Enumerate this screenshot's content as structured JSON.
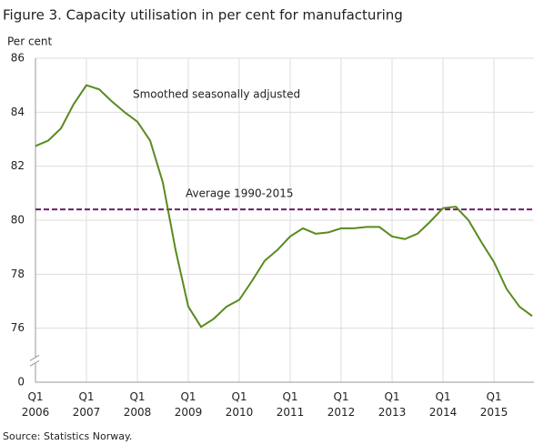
{
  "chart_data": {
    "type": "line",
    "title": "Figure 3. Capacity utilisation in per cent for manufacturing",
    "y_label": "Per cent",
    "source": "Source: Statistics Norway.",
    "categories": [
      "Q1\n2006",
      null,
      null,
      null,
      "Q1\n2007",
      null,
      null,
      null,
      "Q1\n2008",
      null,
      null,
      null,
      "Q1\n2009",
      null,
      null,
      null,
      "Q1\n2010",
      null,
      null,
      null,
      "Q1\n2011",
      null,
      null,
      null,
      "Q1\n2012",
      null,
      null,
      null,
      "Q1\n2013",
      null,
      null,
      null,
      "Q1\n2014",
      null,
      null,
      null,
      "Q1\n2015",
      null,
      null,
      null
    ],
    "series": [
      {
        "name": "Smoothed seasonally adjusted",
        "color": "#5a8a1e",
        "values": [
          82.75,
          82.95,
          83.4,
          84.3,
          85.0,
          84.85,
          84.4,
          84.0,
          83.65,
          82.95,
          81.4,
          78.9,
          76.8,
          76.05,
          76.35,
          76.8,
          77.05,
          77.75,
          78.5,
          78.9,
          79.4,
          79.7,
          79.5,
          79.55,
          79.7,
          79.7,
          79.75,
          79.75,
          79.4,
          79.3,
          79.5,
          79.95,
          80.45,
          80.5,
          80.0,
          79.2,
          78.45,
          77.45,
          76.8,
          76.45
        ]
      }
    ],
    "reference_line": {
      "value": 80.4,
      "label": "Average 1990-2015",
      "color": "#6b1f6b"
    },
    "ylim": [
      0,
      86
    ],
    "yticks": [
      0,
      76,
      78,
      80,
      82,
      84,
      86
    ],
    "axis_break": true,
    "grid": true
  }
}
